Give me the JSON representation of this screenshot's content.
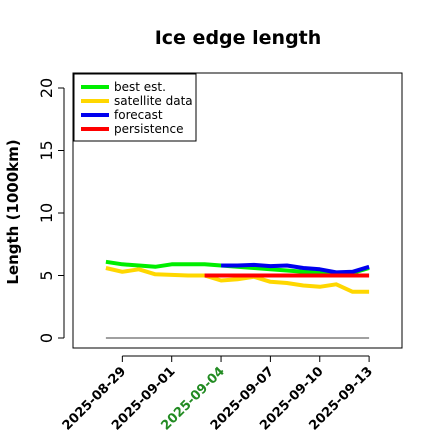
{
  "chart_data": {
    "type": "line",
    "title": "Ice edge length",
    "xlabel": "",
    "ylabel": "Length (1000km)",
    "ylim": [
      -0.8,
      21.2
    ],
    "yticks": [
      0,
      5,
      10,
      15,
      20
    ],
    "xlim": [
      "2025-08-26",
      "2025-09-15"
    ],
    "xticks": [
      "2025-08-29",
      "2025-09-01",
      "2025-09-04",
      "2025-09-07",
      "2025-09-10",
      "2025-09-13"
    ],
    "highlight_tick": "2025-09-04",
    "highlight_color": "#228b22",
    "grid": false,
    "legend_position": "top-left",
    "reference_line": {
      "value": 0,
      "range": [
        "2025-08-28",
        "2025-09-13"
      ],
      "color": "#808080"
    },
    "series": [
      {
        "name": "best est.",
        "color": "#00ee00",
        "x": [
          "2025-08-28",
          "2025-08-29",
          "2025-08-30",
          "2025-08-31",
          "2025-09-01",
          "2025-09-02",
          "2025-09-03",
          "2025-09-04",
          "2025-09-05",
          "2025-09-06",
          "2025-09-07",
          "2025-09-08",
          "2025-09-09",
          "2025-09-10",
          "2025-09-11",
          "2025-09-12",
          "2025-09-13"
        ],
        "y": [
          6.1,
          5.9,
          5.8,
          5.7,
          5.9,
          5.9,
          5.9,
          5.8,
          5.7,
          5.6,
          5.5,
          5.4,
          5.3,
          5.2,
          5.2,
          5.2,
          5.6
        ]
      },
      {
        "name": "satellite data",
        "color": "#ffd700",
        "x": [
          "2025-08-28",
          "2025-08-29",
          "2025-08-30",
          "2025-08-31",
          "2025-09-01",
          "2025-09-02",
          "2025-09-03",
          "2025-09-04",
          "2025-09-05",
          "2025-09-06",
          "2025-09-07",
          "2025-09-08",
          "2025-09-09",
          "2025-09-10",
          "2025-09-11",
          "2025-09-12",
          "2025-09-13"
        ],
        "y": [
          5.6,
          5.3,
          5.5,
          5.1,
          5.05,
          5.0,
          5.0,
          4.6,
          4.7,
          4.9,
          4.5,
          4.4,
          4.2,
          4.1,
          4.3,
          3.7,
          3.7
        ]
      },
      {
        "name": "forecast",
        "color": "#0000ee",
        "x": [
          "2025-09-04",
          "2025-09-05",
          "2025-09-06",
          "2025-09-07",
          "2025-09-08",
          "2025-09-09",
          "2025-09-10",
          "2025-09-11",
          "2025-09-12",
          "2025-09-13"
        ],
        "y": [
          5.8,
          5.8,
          5.85,
          5.75,
          5.8,
          5.6,
          5.5,
          5.25,
          5.3,
          5.7
        ]
      },
      {
        "name": "persistence",
        "color": "#ff0000",
        "x": [
          "2025-09-03",
          "2025-09-13"
        ],
        "y": [
          5.0,
          5.0
        ]
      }
    ]
  }
}
